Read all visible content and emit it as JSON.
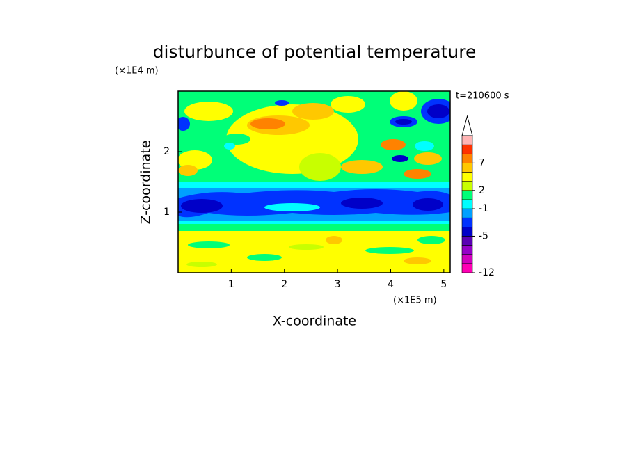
{
  "chart_data": {
    "type": "contour",
    "title": "disturbunce of potential temperature",
    "x_label": "X-coordinate",
    "y_label": "Z-coordinate",
    "x_unit": "(×1E5 m)",
    "y_unit": "(×1E4 m)",
    "annotation": "t=210600 s",
    "xlim": [
      0,
      5.12
    ],
    "xticks": [
      1,
      2,
      3,
      4,
      5
    ],
    "ylim": [
      0,
      3
    ],
    "yticks": [
      1,
      2
    ],
    "colorbar": {
      "levels": [
        -12,
        -10,
        -8,
        -6,
        -5,
        -3,
        -2,
        -1,
        1,
        2,
        3,
        5,
        7,
        9,
        11,
        13
      ],
      "colors": [
        "#ff00b4",
        "#d200be",
        "#9600c8",
        "#5a00b4",
        "#0000c8",
        "#0032ff",
        "#00a0ff",
        "#00ffff",
        "#00ff78",
        "#c8ff00",
        "#ffff00",
        "#ffc800",
        "#ff8200",
        "#ff3200",
        "#ffb4b4"
      ],
      "ticks": [
        -12,
        -5,
        -1,
        2,
        7
      ]
    }
  }
}
